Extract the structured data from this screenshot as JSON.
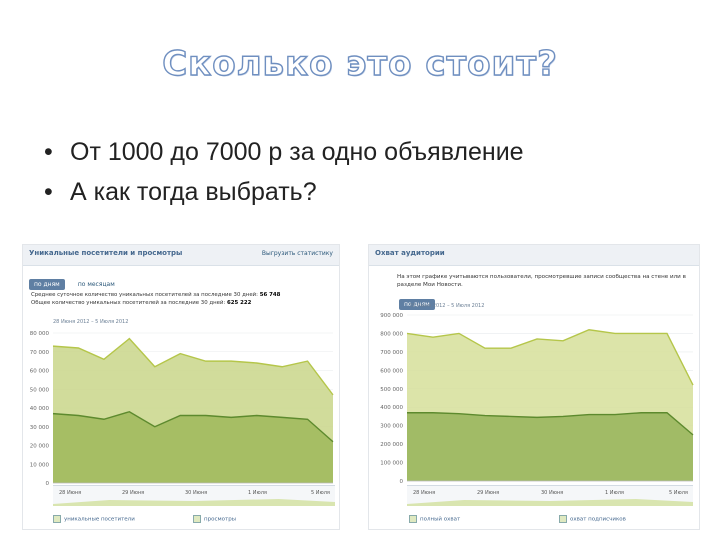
{
  "slide": {
    "title": "Сколько это стоит?",
    "bullets": [
      "От 1000 до 7000 р за одно объявление",
      "А как тогда выбрать?"
    ]
  },
  "left_screenshot": {
    "header_title": "Уникальные посетители и просмотры",
    "header_link": "Выгрузить статистику",
    "tabs": [
      "по дням",
      "по месяцам"
    ],
    "info_line1_prefix": "Среднее суточное количество уникальных посетителей за последние 30 дней:",
    "info_line1_value": "56 748",
    "info_line2_prefix": "Общее количество уникальных посетителей за последние 30 дней:",
    "info_line2_value": "625 222",
    "range": "28 Июня 2012 – 5 Июля 2012",
    "legend": [
      "уникальные посетители",
      "просмотры"
    ],
    "nav_labels": [
      "28 Июня",
      "29 Июня",
      "30 Июня",
      "1 Июля",
      "5 Июля"
    ],
    "chart_data": {
      "type": "area",
      "x": [
        0,
        1,
        2,
        3,
        4,
        5,
        6,
        7,
        8,
        9,
        10,
        11
      ],
      "ylim": [
        0,
        80000
      ],
      "yticks": [
        "0",
        "10 000",
        "20 000",
        "30 000",
        "40 000",
        "50 000",
        "60 000",
        "70 000",
        "80 000"
      ],
      "series": [
        {
          "values": [
            73000,
            72000,
            66000,
            77000,
            62000,
            69000,
            65000,
            65000,
            64000,
            62000,
            65000,
            47000
          ],
          "color": "#c9d68a"
        },
        {
          "values": [
            37000,
            36000,
            34000,
            38000,
            30000,
            36000,
            36000,
            35000,
            36000,
            35000,
            34000,
            22000
          ],
          "color": "#9fb85a"
        }
      ]
    }
  },
  "right_screenshot": {
    "header_title": "Охват аудитории",
    "description": "На этом графике учитываются пользователи, просмотревшие записи сообщества на стене или в разделе Мои Новости.",
    "tabs": [
      "по дням"
    ],
    "range": "28 Июня 2012 – 5 Июля 2012",
    "legend": [
      "полный охват",
      "охват подписчиков"
    ],
    "nav_labels": [
      "28 Июня",
      "29 Июня",
      "30 Июня",
      "1 Июля",
      "5 Июля"
    ],
    "chart_data": {
      "type": "area",
      "x": [
        0,
        1,
        2,
        3,
        4,
        5,
        6,
        7,
        8,
        9,
        10,
        11
      ],
      "ylim": [
        0,
        900000
      ],
      "yticks": [
        "0",
        "100 000",
        "200 000",
        "300 000",
        "400 000",
        "500 000",
        "600 000",
        "700 000",
        "800 000",
        "900 000"
      ],
      "series": [
        {
          "values": [
            800000,
            780000,
            800000,
            720000,
            720000,
            770000,
            760000,
            820000,
            800000,
            800000,
            800000,
            520000
          ],
          "color": "#d6df9a"
        },
        {
          "values": [
            370000,
            370000,
            365000,
            355000,
            350000,
            345000,
            350000,
            360000,
            360000,
            370000,
            370000,
            250000
          ],
          "color": "#97b45a"
        }
      ]
    }
  }
}
